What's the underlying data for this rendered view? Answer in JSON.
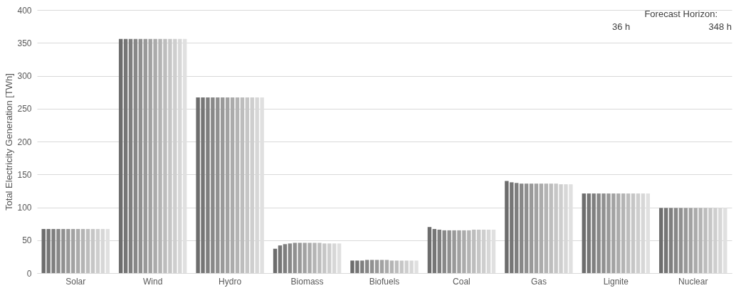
{
  "chart_data": {
    "type": "bar",
    "ylabel": "Total Electricity Generation [TWh]",
    "categories": [
      "Solar",
      "Wind",
      "Hydro",
      "Biomass",
      "Biofuels",
      "Coal",
      "Gas",
      "Lignite",
      "Nuclear"
    ],
    "series": [
      {
        "color": "#6d6d6d",
        "values": [
          67,
          356,
          267,
          37,
          19,
          70,
          140,
          121,
          99
        ]
      },
      {
        "color": "#767676",
        "values": [
          67,
          356,
          267,
          42,
          19,
          67,
          138,
          121,
          99
        ]
      },
      {
        "color": "#7f7f7f",
        "values": [
          67,
          356,
          267,
          44,
          19,
          66,
          137,
          121,
          99
        ]
      },
      {
        "color": "#888888",
        "values": [
          67,
          356,
          267,
          45,
          20,
          65,
          136,
          121,
          99
        ]
      },
      {
        "color": "#909090",
        "values": [
          67,
          356,
          267,
          46,
          20,
          65,
          136,
          121,
          99
        ]
      },
      {
        "color": "#999999",
        "values": [
          67,
          356,
          267,
          46,
          20,
          65,
          136,
          121,
          99
        ]
      },
      {
        "color": "#a2a2a2",
        "values": [
          67,
          356,
          267,
          46,
          20,
          65,
          136,
          121,
          99
        ]
      },
      {
        "color": "#ababab",
        "values": [
          67,
          356,
          267,
          46,
          20,
          65,
          136,
          121,
          99
        ]
      },
      {
        "color": "#b4b4b4",
        "values": [
          67,
          356,
          267,
          46,
          19,
          65,
          136,
          121,
          99
        ]
      },
      {
        "color": "#bdbdbd",
        "values": [
          67,
          356,
          267,
          46,
          19,
          66,
          136,
          121,
          99
        ]
      },
      {
        "color": "#c6c6c6",
        "values": [
          67,
          356,
          267,
          45,
          19,
          66,
          136,
          121,
          99
        ]
      },
      {
        "color": "#cecece",
        "values": [
          67,
          356,
          267,
          45,
          19,
          66,
          135,
          121,
          99
        ]
      },
      {
        "color": "#d7d7d7",
        "values": [
          67,
          356,
          267,
          45,
          19,
          66,
          135,
          121,
          99
        ]
      },
      {
        "color": "#e0e0e0",
        "values": [
          67,
          356,
          267,
          45,
          19,
          66,
          135,
          121,
          99
        ]
      }
    ],
    "ylim": [
      0,
      400
    ],
    "yticks": [
      0,
      50,
      100,
      150,
      200,
      250,
      300,
      350,
      400
    ],
    "grid": "y",
    "annotations": [
      "Forecast Horizon:",
      "36 h",
      "348 h"
    ]
  }
}
